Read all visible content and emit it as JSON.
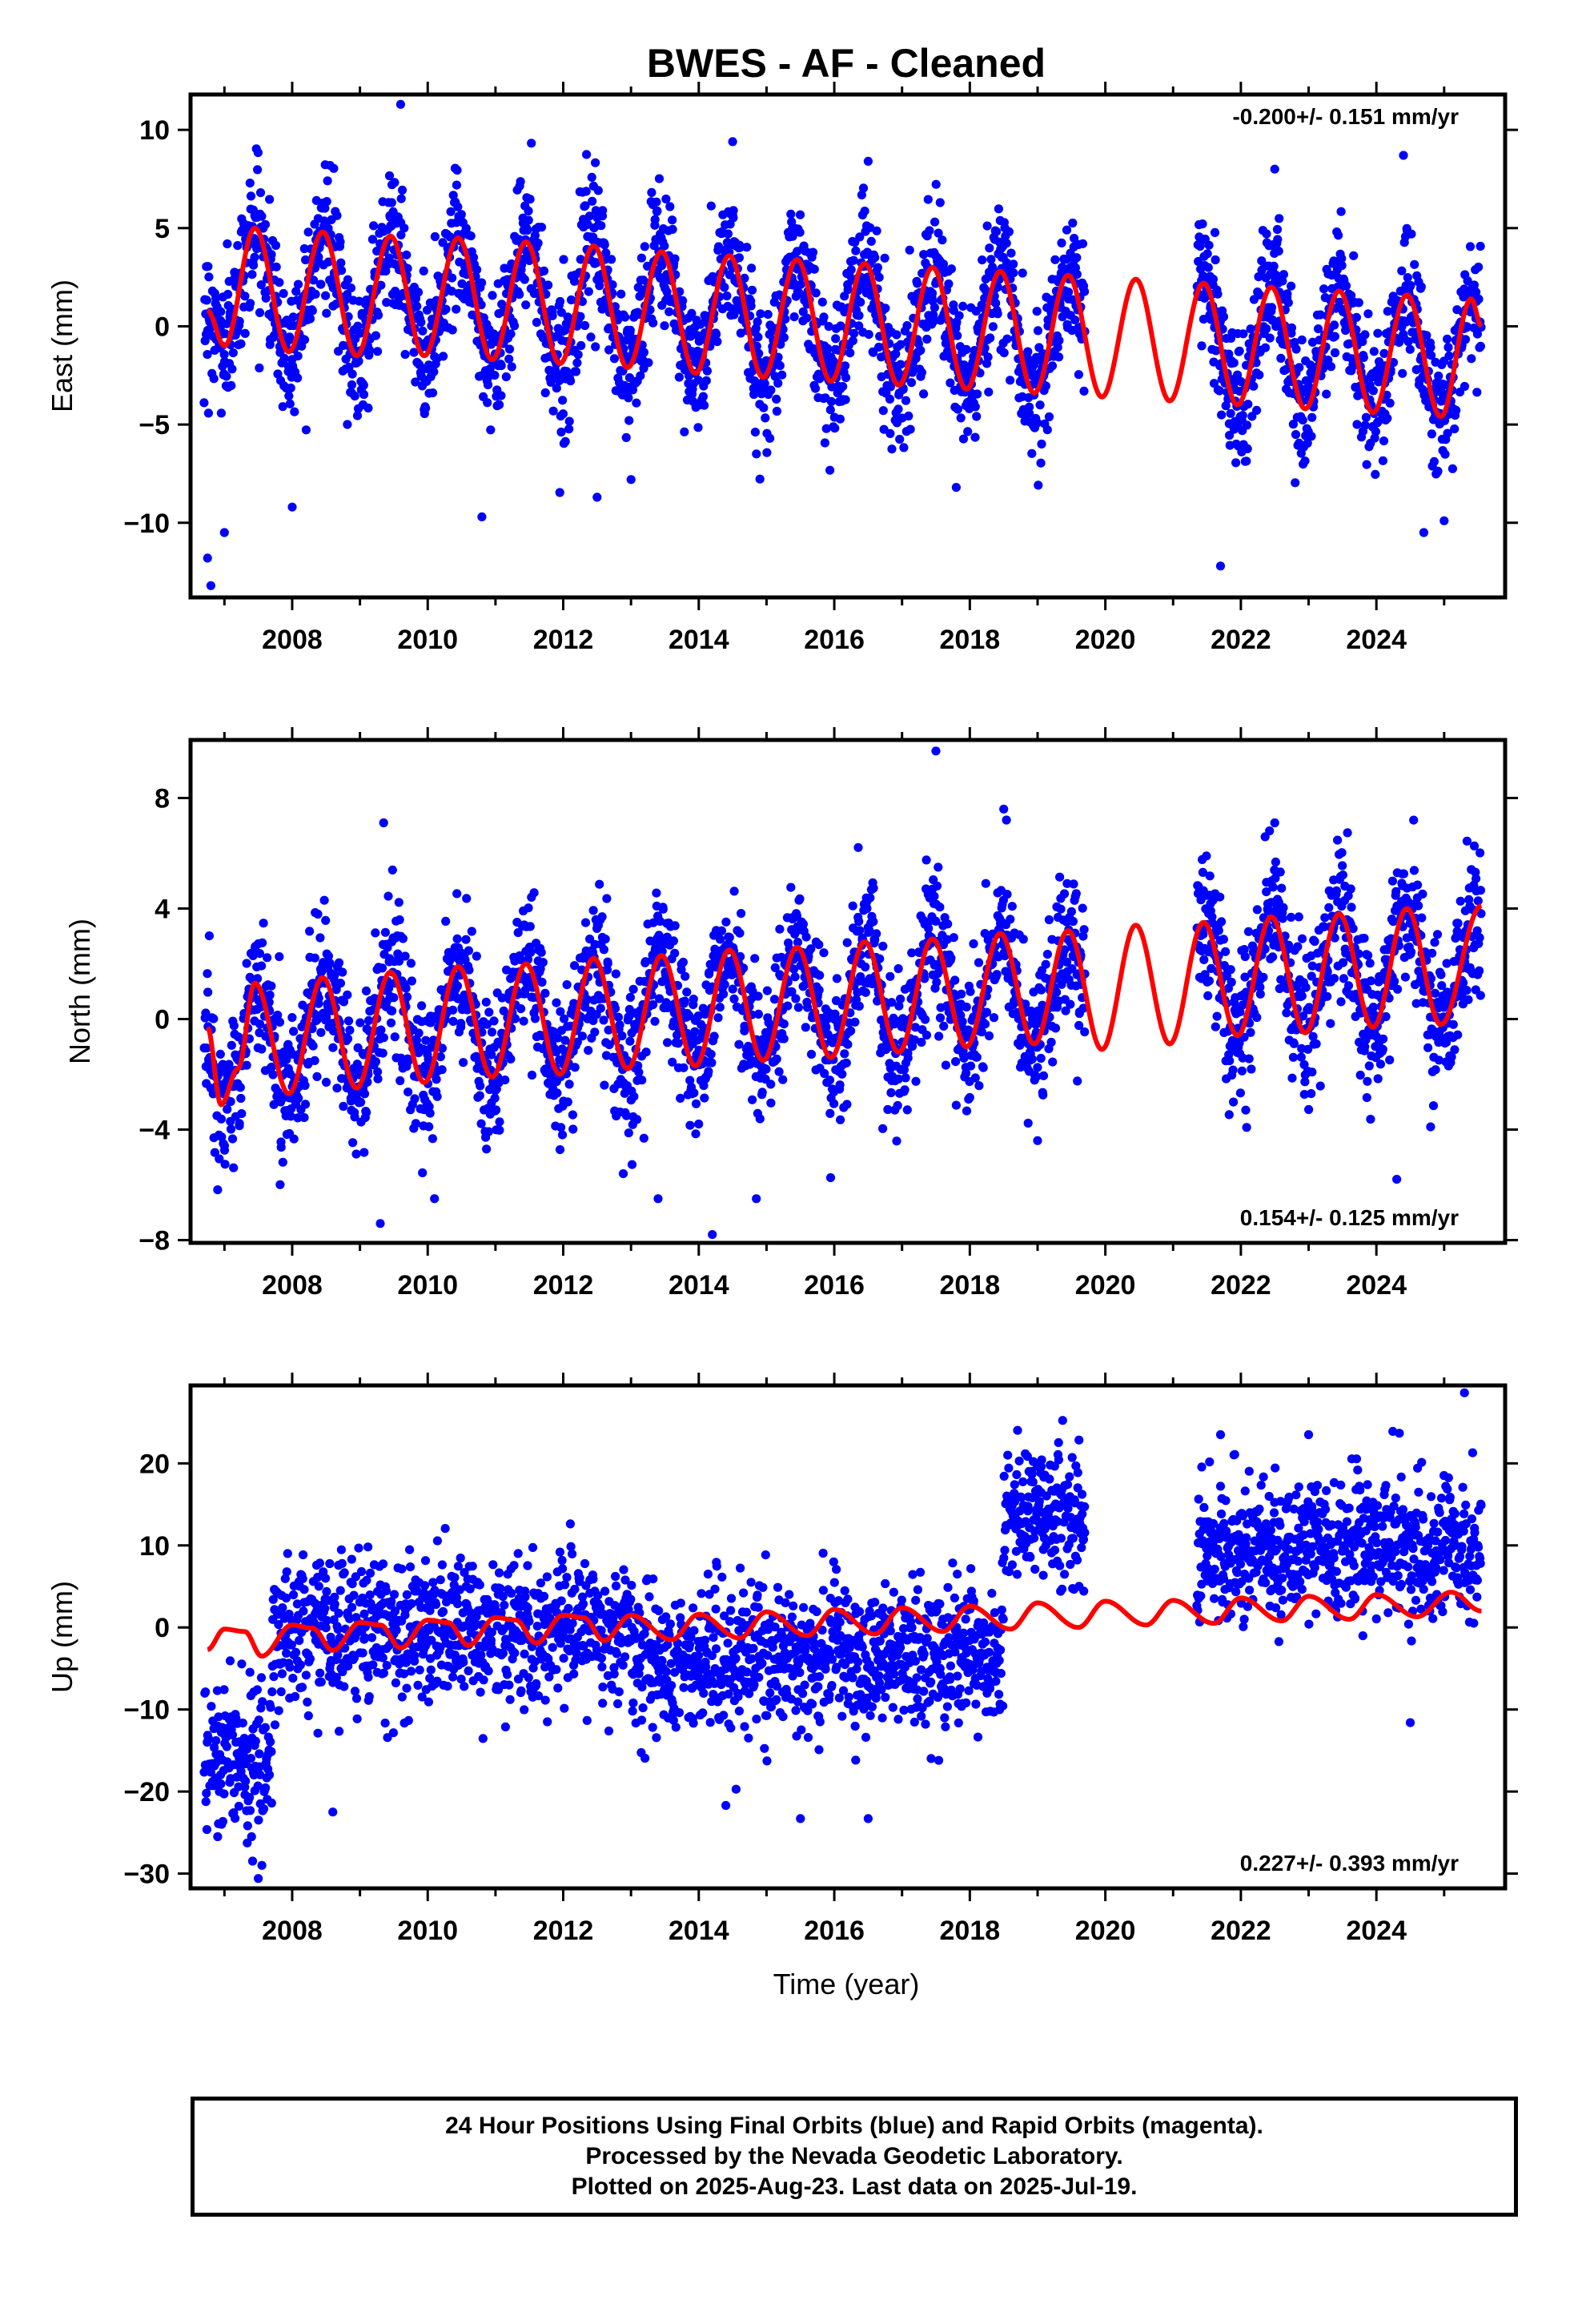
{
  "chart_data": [
    {
      "type": "scatter",
      "panel": "east",
      "title": "BWES  - AF - Cleaned",
      "ylabel": "East (mm)",
      "rate_label": "-0.200+/- 0.151 mm/yr",
      "xlim": [
        2006.5,
        2025.9
      ],
      "ylim": [
        -13.8,
        11.8
      ],
      "x_ticks": [
        2008,
        2010,
        2012,
        2014,
        2016,
        2018,
        2020,
        2022,
        2024
      ],
      "y_ticks": [
        10,
        5,
        0,
        -5,
        -10
      ],
      "y_tick_labels": [
        "10",
        "5",
        "0",
        "−5",
        "−10"
      ],
      "data_range": [
        2006.7,
        2025.55
      ],
      "gap": [
        2019.7,
        2021.35
      ],
      "series": [
        {
          "kind": "observations",
          "color": "#0000ff",
          "seasonal_amplitude_range": [
            3.2,
            3.5
          ],
          "scatter_std": 1.7,
          "outliers": [
            [
              2006.8,
              -13.2
            ],
            [
              2006.75,
              -11.8
            ],
            [
              2007.0,
              -10.5
            ],
            [
              2008.0,
              -9.2
            ],
            [
              2010.8,
              -9.7
            ],
            [
              2012.5,
              -8.7
            ],
            [
              2013.0,
              -7.8
            ],
            [
              2009.6,
              11.3
            ],
            [
              2014.5,
              9.4
            ],
            [
              2016.5,
              8.4
            ],
            [
              2021.7,
              -12.2
            ],
            [
              2022.5,
              8.0
            ],
            [
              2024.4,
              8.7
            ],
            [
              2024.7,
              -10.5
            ],
            [
              2025.0,
              -9.9
            ],
            [
              2017.8,
              -8.2
            ]
          ]
        },
        {
          "kind": "model_fit",
          "color": "#ff0000",
          "samples": [
            [
              2006.75,
              0.8
            ],
            [
              2007.0,
              -1.0
            ],
            [
              2007.45,
              5.0
            ],
            [
              2007.95,
              -1.3
            ],
            [
              2008.45,
              4.8
            ],
            [
              2008.95,
              -1.5
            ],
            [
              2009.45,
              4.6
            ],
            [
              2009.95,
              -1.5
            ],
            [
              2010.45,
              4.5
            ],
            [
              2010.95,
              -1.7
            ],
            [
              2011.45,
              4.3
            ],
            [
              2011.95,
              -1.9
            ],
            [
              2012.45,
              4.1
            ],
            [
              2012.95,
              -2.1
            ],
            [
              2013.45,
              3.8
            ],
            [
              2013.95,
              -2.4
            ],
            [
              2014.45,
              3.6
            ],
            [
              2014.95,
              -2.6
            ],
            [
              2015.45,
              3.4
            ],
            [
              2015.95,
              -2.8
            ],
            [
              2016.45,
              3.2
            ],
            [
              2016.95,
              -3.0
            ],
            [
              2017.45,
              3.0
            ],
            [
              2017.95,
              -3.2
            ],
            [
              2018.45,
              2.8
            ],
            [
              2018.95,
              -3.4
            ],
            [
              2019.45,
              2.6
            ],
            [
              2019.95,
              -3.6
            ],
            [
              2020.45,
              2.4
            ],
            [
              2020.95,
              -3.8
            ],
            [
              2021.45,
              2.2
            ],
            [
              2021.95,
              -4.0
            ],
            [
              2022.45,
              2.0
            ],
            [
              2022.95,
              -4.2
            ],
            [
              2023.45,
              1.8
            ],
            [
              2023.95,
              -4.4
            ],
            [
              2024.45,
              1.6
            ],
            [
              2024.95,
              -4.6
            ],
            [
              2025.4,
              1.4
            ],
            [
              2025.55,
              0.0
            ]
          ]
        }
      ]
    },
    {
      "type": "scatter",
      "panel": "north",
      "ylabel": "North (mm)",
      "rate_label": "0.154+/- 0.125 mm/yr",
      "xlim": [
        2006.5,
        2025.9
      ],
      "ylim": [
        -8.1,
        10.1
      ],
      "x_ticks": [
        2008,
        2010,
        2012,
        2014,
        2016,
        2018,
        2020,
        2022,
        2024
      ],
      "y_ticks": [
        8,
        4,
        0,
        -4,
        -8
      ],
      "y_tick_labels": [
        "8",
        "4",
        "0",
        "−4",
        "−8"
      ],
      "data_range": [
        2006.7,
        2025.55
      ],
      "gap": [
        2019.7,
        2021.35
      ],
      "series": [
        {
          "kind": "observations",
          "color": "#0000ff",
          "seasonal_amplitude_range": [
            2.0,
            2.0
          ],
          "scatter_std": 1.3,
          "outliers": [
            [
              2017.5,
              9.7
            ],
            [
              2009.35,
              7.1
            ],
            [
              2018.5,
              7.6
            ],
            [
              2022.5,
              7.1
            ],
            [
              2024.55,
              7.2
            ],
            [
              2009.3,
              -7.4
            ],
            [
              2014.2,
              -7.8
            ],
            [
              2013.4,
              -6.5
            ],
            [
              2010.1,
              -6.5
            ],
            [
              2014.85,
              -6.5
            ],
            [
              2024.3,
              -5.8
            ],
            [
              2019.0,
              -4.4
            ],
            [
              2024.8,
              -3.9
            ]
          ]
        },
        {
          "kind": "model_fit",
          "color": "#ff0000",
          "samples": [
            [
              2006.75,
              -0.3
            ],
            [
              2006.95,
              -3.1
            ],
            [
              2007.2,
              -1.8
            ],
            [
              2007.45,
              1.3
            ],
            [
              2007.95,
              -2.7
            ],
            [
              2008.45,
              1.5
            ],
            [
              2008.95,
              -2.5
            ],
            [
              2009.45,
              1.7
            ],
            [
              2009.95,
              -2.3
            ],
            [
              2010.45,
              1.9
            ],
            [
              2010.95,
              -2.1
            ],
            [
              2011.45,
              2.0
            ],
            [
              2011.95,
              -2.0
            ],
            [
              2012.45,
              2.2
            ],
            [
              2012.95,
              -1.8
            ],
            [
              2013.45,
              2.3
            ],
            [
              2013.95,
              -1.7
            ],
            [
              2014.45,
              2.5
            ],
            [
              2014.95,
              -1.5
            ],
            [
              2015.45,
              2.6
            ],
            [
              2015.95,
              -1.4
            ],
            [
              2016.45,
              2.8
            ],
            [
              2016.95,
              -1.2
            ],
            [
              2017.45,
              2.9
            ],
            [
              2017.95,
              -1.0
            ],
            [
              2018.45,
              3.1
            ],
            [
              2018.95,
              -0.9
            ],
            [
              2019.45,
              3.2
            ],
            [
              2019.95,
              -1.1
            ],
            [
              2020.45,
              3.4
            ],
            [
              2020.95,
              -0.9
            ],
            [
              2021.45,
              3.5
            ],
            [
              2021.95,
              -0.6
            ],
            [
              2022.45,
              3.7
            ],
            [
              2022.95,
              -0.5
            ],
            [
              2023.45,
              3.8
            ],
            [
              2023.95,
              -0.3
            ],
            [
              2024.45,
              4.0
            ],
            [
              2024.95,
              -0.2
            ],
            [
              2025.55,
              4.1
            ]
          ]
        }
      ]
    },
    {
      "type": "scatter",
      "panel": "up",
      "ylabel": "Up (mm)",
      "xlabel": "Time (year)",
      "rate_label": "0.227+/- 0.393 mm/yr",
      "xlim": [
        2006.5,
        2025.9
      ],
      "ylim": [
        -31.8,
        29.5
      ],
      "x_ticks": [
        2008,
        2010,
        2012,
        2014,
        2016,
        2018,
        2020,
        2022,
        2024
      ],
      "y_ticks": [
        20,
        10,
        0,
        -10,
        -20,
        -30
      ],
      "y_tick_labels": [
        "20",
        "10",
        "0",
        "−10",
        "−20",
        "−30"
      ],
      "data_range": [
        2006.7,
        2025.55
      ],
      "gap": [
        2019.7,
        2021.35
      ],
      "offset_segments": [
        {
          "from": 2006.7,
          "to": 2007.7,
          "mean": -15
        },
        {
          "from": 2007.7,
          "to": 2013.0,
          "mean": 0
        },
        {
          "from": 2013.0,
          "to": 2018.5,
          "mean": -4
        },
        {
          "from": 2018.5,
          "to": 2019.7,
          "mean": 13
        },
        {
          "from": 2021.35,
          "to": 2025.55,
          "mean": 9
        }
      ],
      "series": [
        {
          "kind": "observations",
          "color": "#0000ff",
          "scatter_std": 4.3,
          "outliers": [
            [
              2025.3,
              28.6
            ],
            [
              2021.7,
              23.5
            ],
            [
              2023.0,
              23.5
            ],
            [
              2006.9,
              -25.5
            ],
            [
              2007.4,
              -25.5
            ],
            [
              2007.5,
              -30.6
            ],
            [
              2014.4,
              -21.7
            ],
            [
              2015.5,
              -23.3
            ],
            [
              2016.5,
              -23.3
            ],
            [
              2024.5,
              -11.6
            ],
            [
              2008.6,
              -22.5
            ]
          ]
        },
        {
          "kind": "model_fit",
          "color": "#ff0000",
          "samples": [
            [
              2006.75,
              -2.7
            ],
            [
              2007.0,
              -0.2
            ],
            [
              2007.3,
              -0.5
            ],
            [
              2007.55,
              -3.5
            ],
            [
              2008.0,
              0.3
            ],
            [
              2008.3,
              -0.1
            ],
            [
              2008.6,
              -2.8
            ],
            [
              2009.0,
              0.6
            ],
            [
              2009.3,
              0.3
            ],
            [
              2009.6,
              -2.5
            ],
            [
              2010.0,
              0.9
            ],
            [
              2010.3,
              0.6
            ],
            [
              2010.6,
              -2.2
            ],
            [
              2011.0,
              1.2
            ],
            [
              2011.3,
              0.9
            ],
            [
              2011.6,
              -1.9
            ],
            [
              2012.0,
              1.5
            ],
            [
              2012.3,
              1.2
            ],
            [
              2012.6,
              -1.6
            ],
            [
              2013.0,
              1.5
            ],
            [
              2013.6,
              -1.5
            ],
            [
              2014.0,
              1.6
            ],
            [
              2014.6,
              -1.3
            ],
            [
              2015.0,
              1.9
            ],
            [
              2015.6,
              -1.0
            ],
            [
              2016.0,
              2.2
            ],
            [
              2016.6,
              -0.8
            ],
            [
              2017.0,
              2.4
            ],
            [
              2017.6,
              -0.5
            ],
            [
              2018.0,
              2.6
            ],
            [
              2018.6,
              -0.2
            ],
            [
              2019.0,
              3.0
            ],
            [
              2019.6,
              0.0
            ],
            [
              2020.0,
              3.2
            ],
            [
              2020.6,
              0.3
            ],
            [
              2021.0,
              3.3
            ],
            [
              2021.6,
              0.5
            ],
            [
              2022.0,
              3.6
            ],
            [
              2022.6,
              0.8
            ],
            [
              2023.0,
              3.8
            ],
            [
              2023.6,
              1.0
            ],
            [
              2024.0,
              4.0
            ],
            [
              2024.6,
              1.3
            ],
            [
              2025.1,
              4.3
            ],
            [
              2025.55,
              2.0
            ]
          ]
        }
      ]
    }
  ],
  "footer": {
    "line1": "24 Hour Positions Using Final Orbits (blue) and Rapid Orbits (magenta).",
    "line2": "Processed by the Nevada Geodetic Laboratory.",
    "line3": "Plotted on 2025-Aug-23. Last data on 2025-Jul-19."
  }
}
